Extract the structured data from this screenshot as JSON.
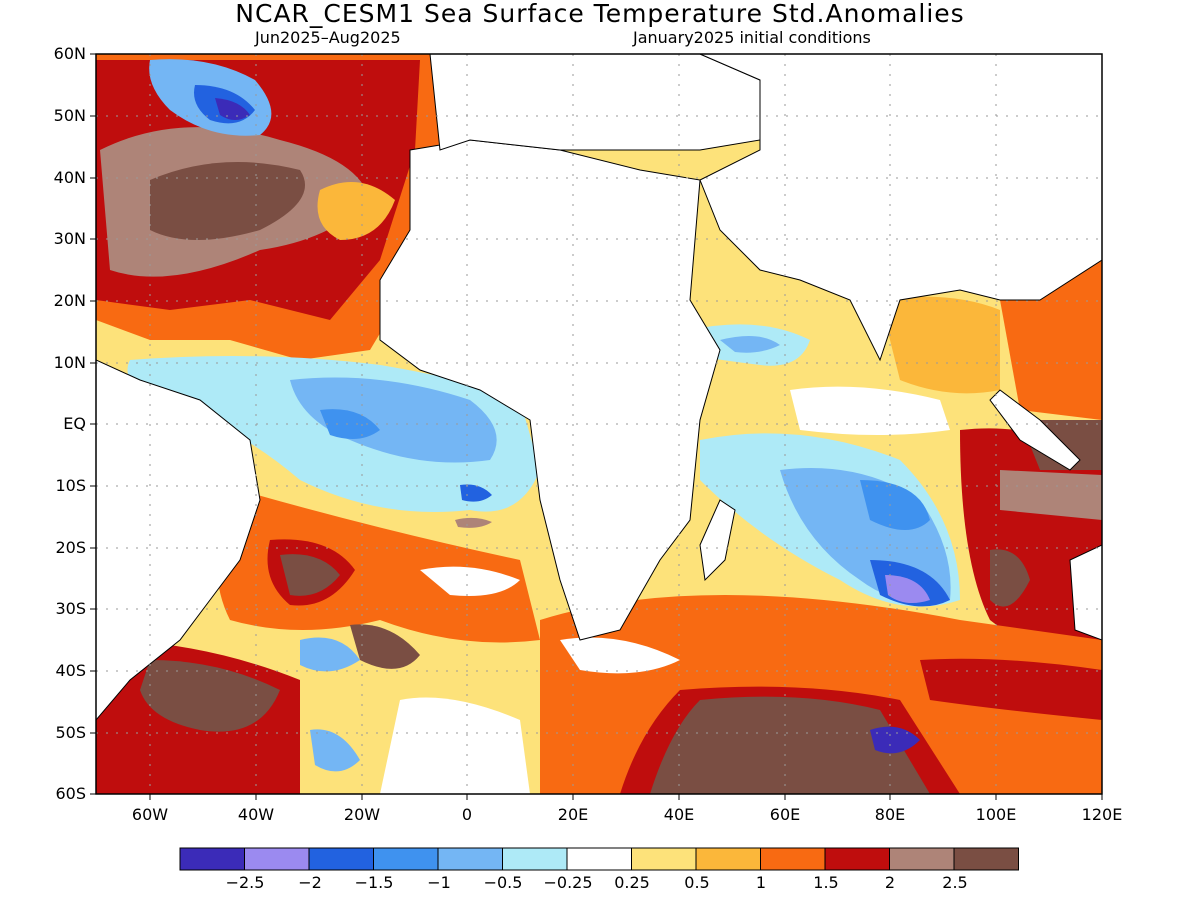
{
  "title": "NCAR_CESM1 Sea Surface Temperature Std.Anomalies",
  "subtitle_left": "Jun2025–Aug2025",
  "subtitle_right": "January2025 initial conditions",
  "lat_labels": [
    "60N",
    "50N",
    "40N",
    "30N",
    "20N",
    "10N",
    "EQ",
    "10S",
    "20S",
    "30S",
    "40S",
    "50S",
    "60S"
  ],
  "lon_labels": [
    "60W",
    "40W",
    "20W",
    "0",
    "20E",
    "40E",
    "60E",
    "80E",
    "100E",
    "120E"
  ],
  "colorbar": {
    "labels": [
      "−2.5",
      "−2",
      "−1.5",
      "−1",
      "−0.5",
      "−0.25",
      "0.25",
      "0.5",
      "1",
      "1.5",
      "2",
      "2.5"
    ],
    "colors": [
      "#3b2bb8",
      "#9b8af0",
      "#2262e0",
      "#3f92ef",
      "#74b6f4",
      "#aeeaf7",
      "#ffffff",
      "#fde27a",
      "#fbb73a",
      "#f86a12",
      "#bf0d0d",
      "#ae8478",
      "#7a4e43"
    ]
  },
  "map_extent": {
    "lon": [
      -70,
      120
    ],
    "lat": [
      -60,
      60
    ]
  },
  "regions": {
    "north_atlantic": "#bf0d0d",
    "equatorial_atlantic": "#74b6f4",
    "south_indian_cold": "#3f92ef",
    "southern_ocean_warm": "#7a4e43",
    "indonesia_warm": "#ae8478"
  }
}
